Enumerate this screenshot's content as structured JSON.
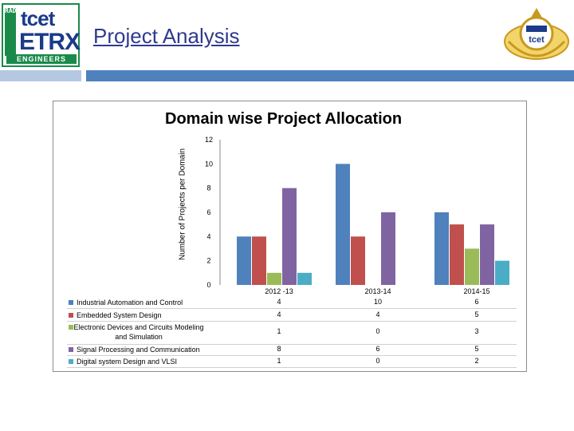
{
  "header": {
    "page_title": "Project Analysis",
    "logo_vertical": "RADIANT",
    "logo_tcet": "tcet",
    "logo_etrx": "ETRX",
    "logo_engineers": "ENGINEERS",
    "seal_text": "tcet"
  },
  "colors": {
    "accent": "#4f81bd",
    "accent_light": "#b5c8e2",
    "series": [
      "#4f81bd",
      "#c0504d",
      "#9bbb59",
      "#8064a2",
      "#4bacc6"
    ]
  },
  "chart_data": {
    "type": "bar",
    "title": "Domain wise Project Allocation",
    "xlabel": "",
    "ylabel": "Number of Projects per Domain",
    "ylim": [
      0,
      12
    ],
    "yticks": [
      "0",
      "2",
      "4",
      "6",
      "8",
      "10",
      "12"
    ],
    "categories": [
      "2012 -13",
      "2013-14",
      "2014-15"
    ],
    "series": [
      {
        "name": "Industrial Automation and Control",
        "values": [
          4,
          10,
          6
        ],
        "display": [
          "4",
          "10",
          "6"
        ]
      },
      {
        "name": "Embedded System Design",
        "values": [
          4,
          4,
          5
        ],
        "display": [
          "4",
          "4",
          "5"
        ]
      },
      {
        "name": "Electronic Devices and Circuits Modeling and Simulation",
        "values": [
          1,
          0,
          3
        ],
        "display": [
          "1",
          "0",
          "3"
        ]
      },
      {
        "name": "Signal Processing and Communication",
        "values": [
          8,
          6,
          5
        ],
        "display": [
          "8",
          "6",
          "5"
        ]
      },
      {
        "name": "Digital system Design and VLSI",
        "values": [
          1,
          0,
          2
        ],
        "display": [
          "1",
          "0",
          "2"
        ]
      }
    ]
  }
}
